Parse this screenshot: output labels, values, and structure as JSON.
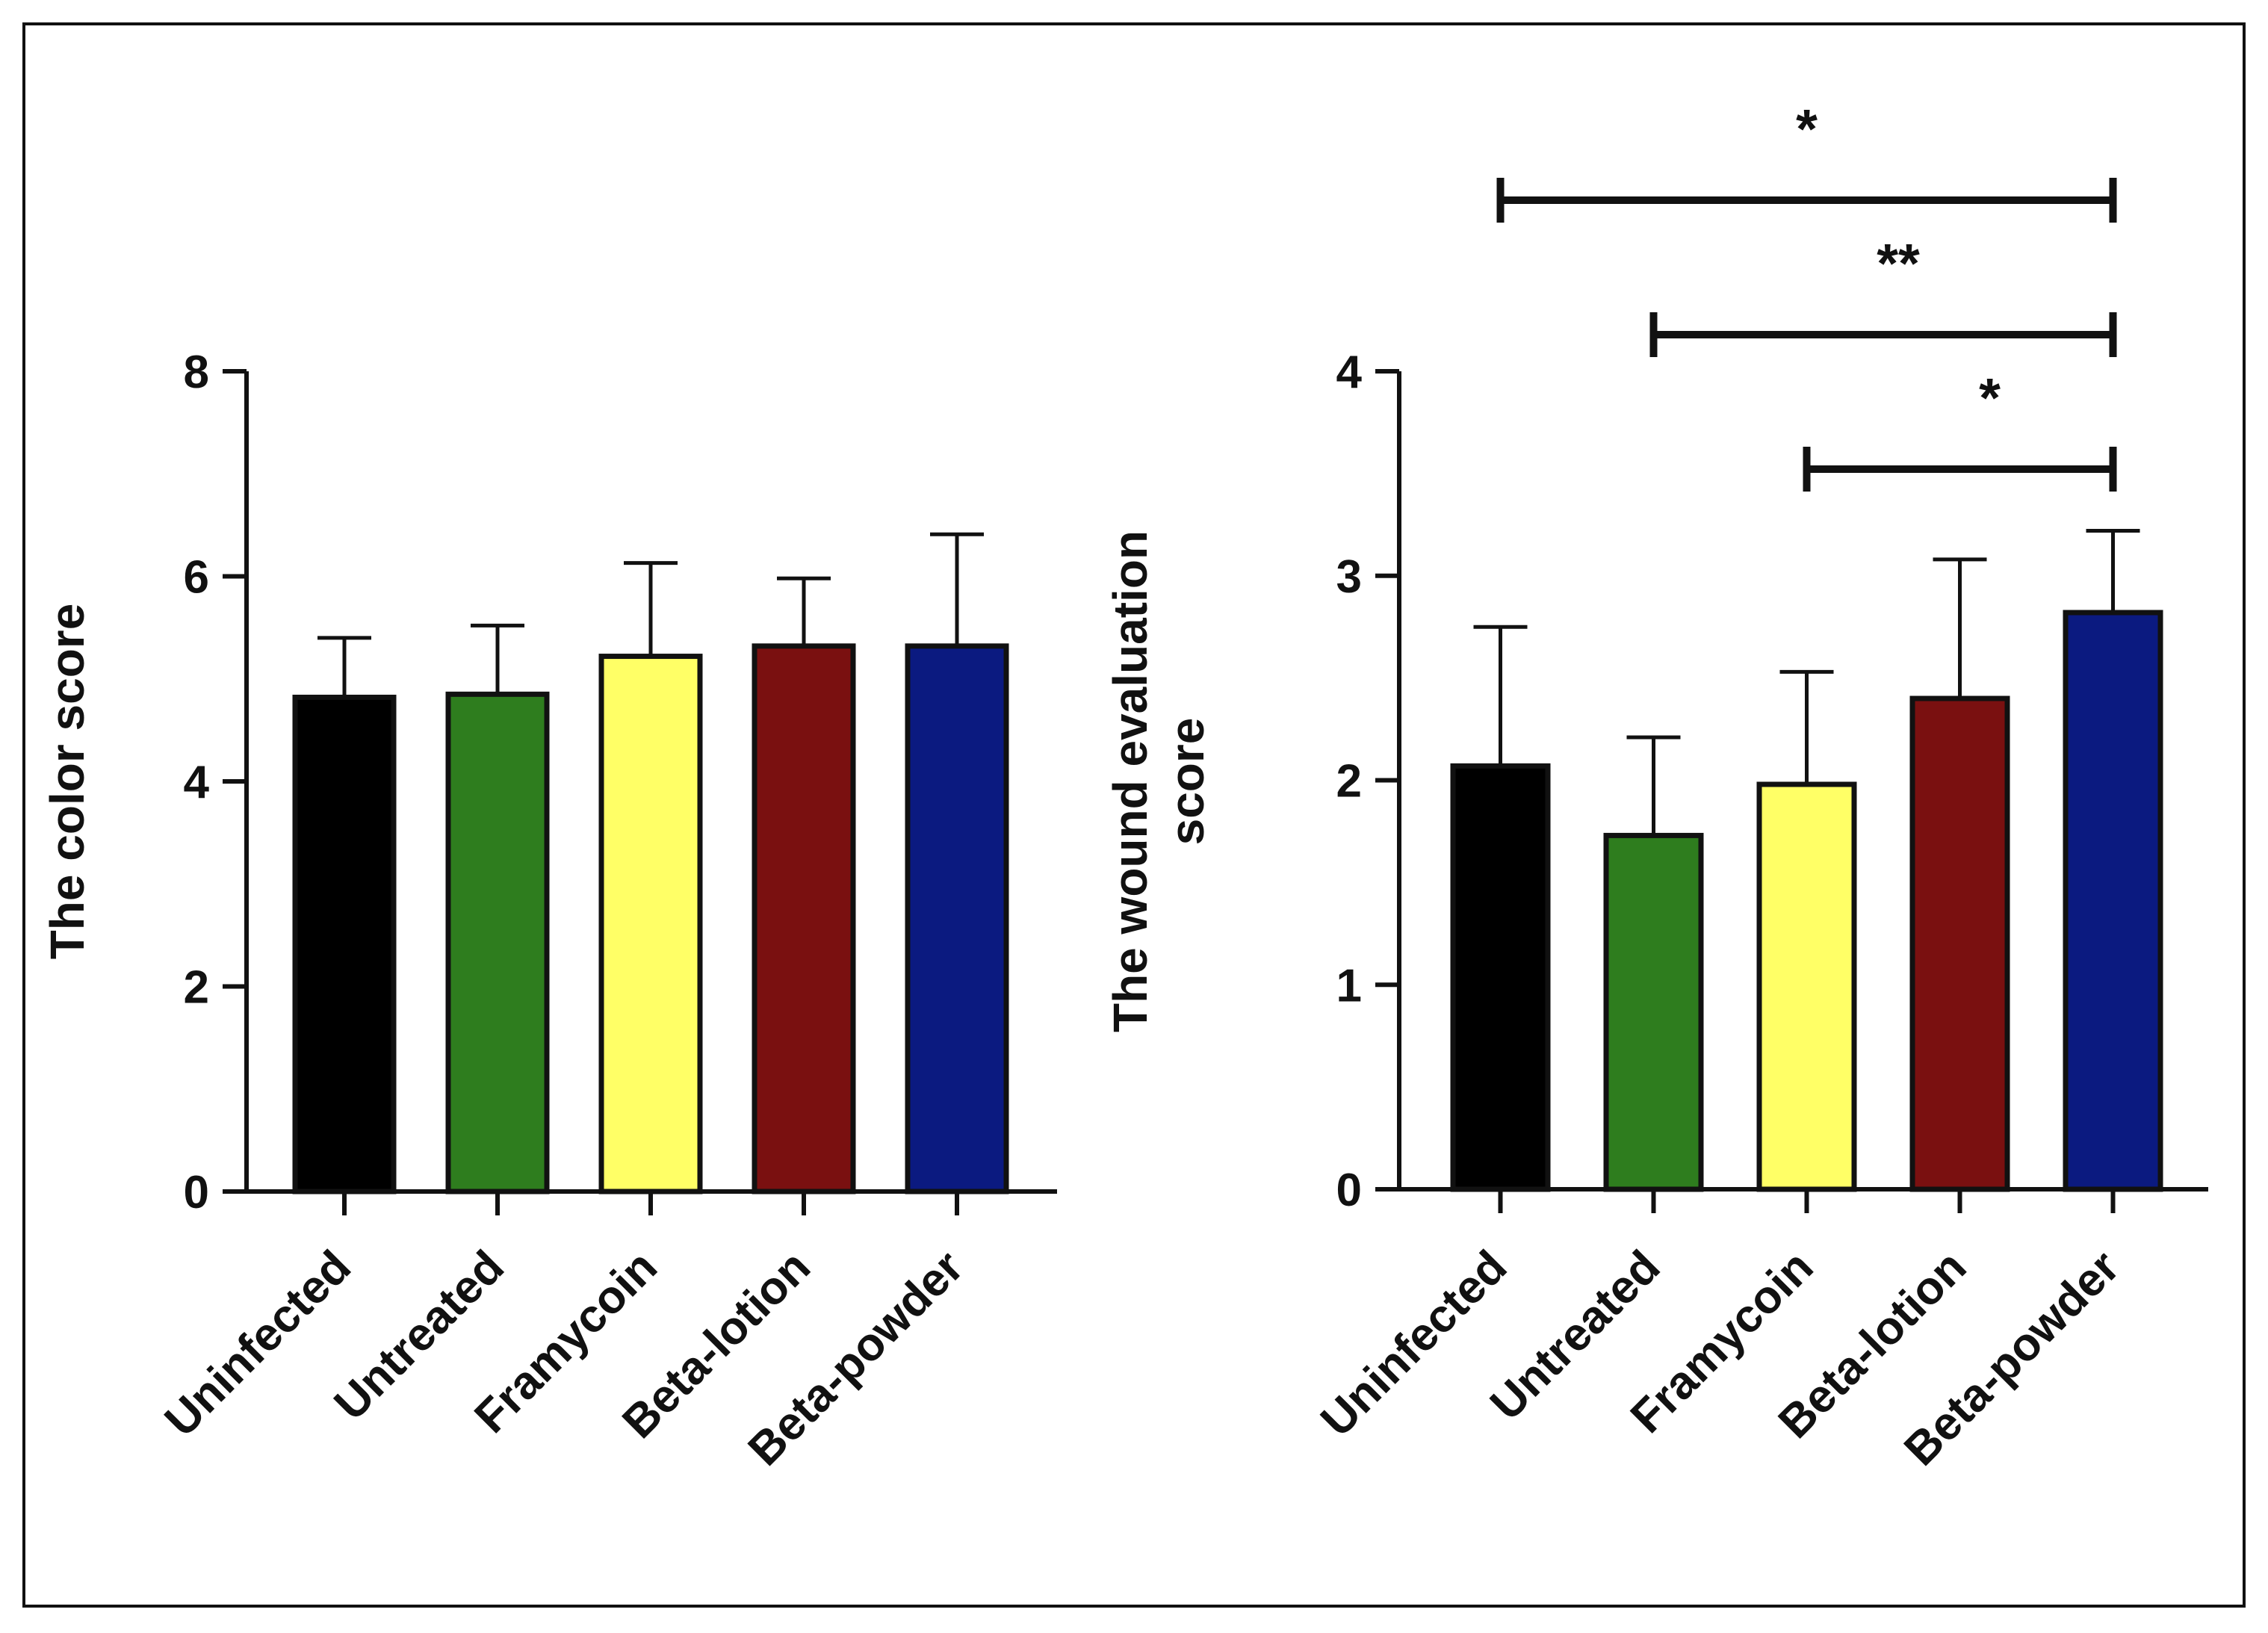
{
  "chart_data": [
    {
      "type": "bar",
      "ylabel": "The color score",
      "ylabel_lines": [
        "The color score"
      ],
      "xlabel": "",
      "title": "",
      "categories": [
        "Uninfected",
        "Untreated",
        "Framycoin",
        "Beta-lotion",
        "Beta-powder"
      ],
      "values": [
        4.82,
        4.85,
        5.22,
        5.32,
        5.32
      ],
      "errors": [
        0.58,
        0.67,
        0.91,
        0.66,
        1.09
      ],
      "colors": [
        "#000000",
        "#2e7d1e",
        "#ffff66",
        "#7a1010",
        "#0b1a80"
      ],
      "ylim": [
        0,
        8
      ],
      "yticks": [
        0,
        2,
        4,
        6,
        8
      ],
      "grid": false,
      "significance": []
    },
    {
      "type": "bar",
      "ylabel": "The wound evaluation score",
      "ylabel_lines": [
        "The wound evaluation",
        "score"
      ],
      "xlabel": "",
      "title": "",
      "categories": [
        "Uninfected",
        "Untreated",
        "Framycoin",
        "Beta-lotion",
        "Beta-powder"
      ],
      "values": [
        2.07,
        1.73,
        1.98,
        2.4,
        2.82
      ],
      "errors": [
        0.68,
        0.48,
        0.55,
        0.68,
        0.4
      ],
      "colors": [
        "#000000",
        "#2e7d1e",
        "#ffff66",
        "#7a1010",
        "#0b1a80"
      ],
      "ylim": [
        0,
        4
      ],
      "yticks": [
        0,
        1,
        2,
        3,
        4
      ],
      "grid": false,
      "significance": [
        {
          "from": "Uninfected",
          "to": "Beta-powder",
          "label": "*"
        },
        {
          "from": "Untreated",
          "to": "Beta-powder",
          "label": "**"
        },
        {
          "from": "Framycoin",
          "to": "Beta-powder",
          "label": "*"
        }
      ]
    }
  ]
}
